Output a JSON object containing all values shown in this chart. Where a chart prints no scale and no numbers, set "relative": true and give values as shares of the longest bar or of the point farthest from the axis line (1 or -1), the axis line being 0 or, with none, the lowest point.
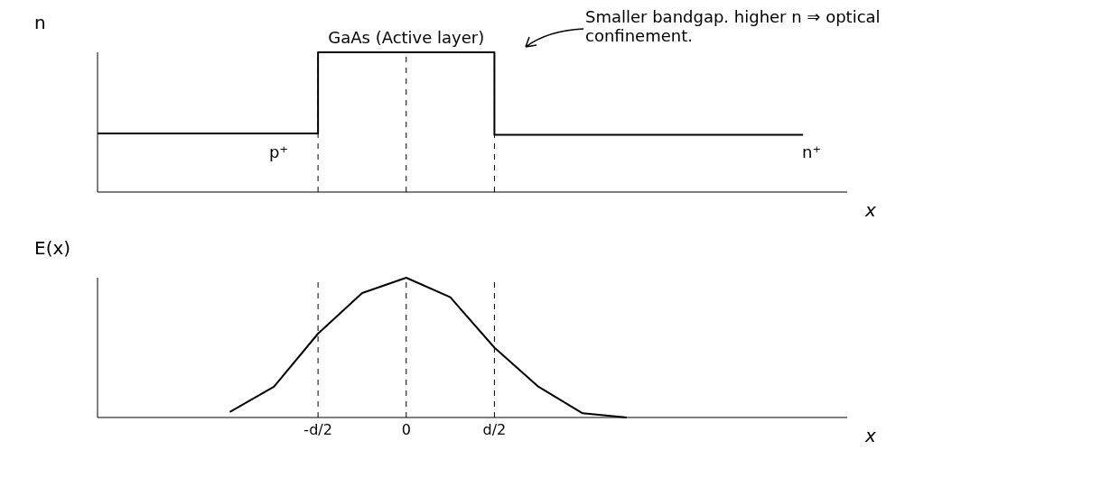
{
  "chart_data": [
    {
      "type": "step",
      "relative": true,
      "ylabel": "n",
      "xlabel": "x",
      "tick_labels": false,
      "categories": [
        null,
        null,
        null,
        null,
        null,
        "-d/2",
        null,
        "0",
        null,
        "d/2",
        null,
        null,
        null,
        null,
        null,
        null,
        null,
        null
      ],
      "values": [
        0.42,
        0.42,
        0.42,
        0.42,
        0.42,
        1,
        1,
        1,
        1,
        0.41,
        0.41,
        0.41,
        0.41,
        0.41,
        0.41,
        0.41,
        0.41,
        null
      ],
      "color": "#000000",
      "ref_lines": [
        {
          "axis": "x",
          "value": "-d/2",
          "line_style": "dashed",
          "color": "#000000"
        },
        {
          "axis": "x",
          "value": "0",
          "line_style": "dashed",
          "color": "#000000"
        },
        {
          "axis": "x",
          "value": "d/2",
          "line_style": "dashed",
          "color": "#000000"
        }
      ],
      "annotations": [
        "p⁺",
        {
          "text": "GaAs (Active layer)",
          "x": "0",
          "y": 1
        },
        "n⁺",
        "Smaller bandgap. higher n ⇒ optical confinement."
      ]
    },
    {
      "type": "line",
      "relative": true,
      "ylabel": "E(x)",
      "xlabel": "x",
      "categories": [
        null,
        null,
        null,
        null,
        null,
        "-d/2",
        null,
        "0",
        null,
        "d/2",
        null,
        null,
        null,
        null,
        null,
        null,
        null,
        null
      ],
      "values": [
        null,
        null,
        null,
        0.04,
        0.22,
        0.6,
        0.89,
        1,
        0.86,
        0.5,
        0.22,
        0.03,
        0,
        null,
        null,
        null,
        null,
        null
      ],
      "color": "#000000",
      "ref_lines": [
        {
          "axis": "x",
          "value": "-d/2",
          "line_style": "dashed",
          "color": "#000000"
        },
        {
          "axis": "x",
          "value": "0",
          "line_style": "dashed",
          "color": "#000000"
        },
        {
          "axis": "x",
          "value": "d/2",
          "line_style": "dashed",
          "color": "#000000"
        }
      ]
    }
  ]
}
